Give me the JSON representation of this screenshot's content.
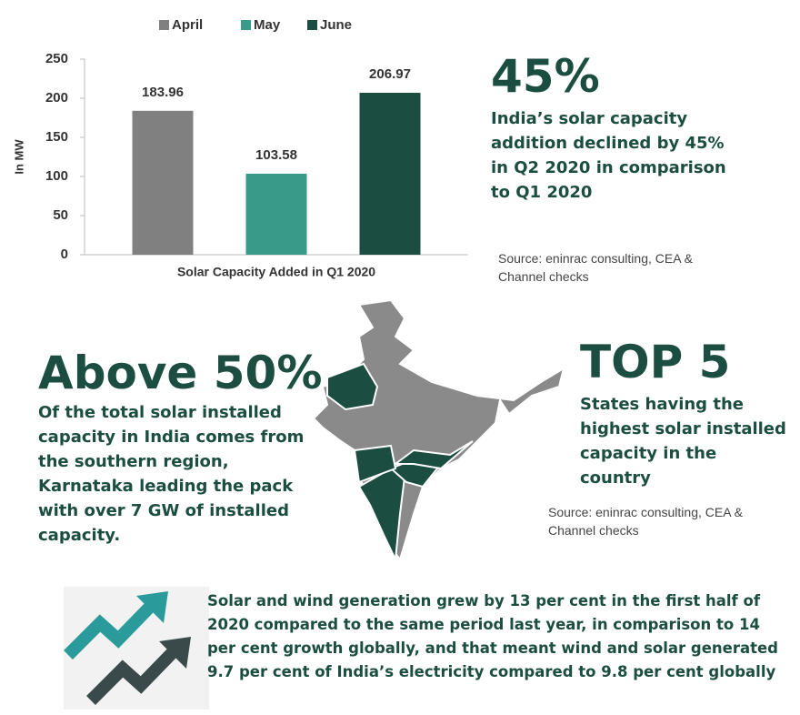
{
  "chart_data": {
    "type": "bar",
    "y_label": "In MW",
    "categories": [
      "Solar Capacity Added in Q1 2020"
    ],
    "series": [
      {
        "name": "April",
        "color": "#808080",
        "values": [
          183.96
        ]
      },
      {
        "name": "May",
        "color": "#3a9a8a",
        "values": [
          103.58
        ]
      },
      {
        "name": "June",
        "color": "#1b4d40",
        "values": [
          206.97
        ]
      }
    ],
    "ylim": [
      0,
      250
    ],
    "yticks": [
      0,
      50,
      100,
      150,
      200,
      250
    ],
    "legend": "top"
  },
  "stat_decline": {
    "headline": "45%",
    "text": "India’s solar capacity addition declined by 45% in Q2 2020 in comparison to Q1 2020",
    "source": "Source: eninrac consulting, CEA & Channel checks"
  },
  "stat_south": {
    "headline": "Above 50%",
    "text": "Of the total solar installed capacity in India comes from the southern region, Karnataka leading the pack with over 7 GW of installed capacity."
  },
  "stat_top": {
    "headline": "TOP 5",
    "text": "States having the highest solar installed capacity in the country",
    "source": "Source: eninrac consulting, CEA & Channel checks"
  },
  "growth": {
    "text": "Solar and wind generation grew by 13 per cent in the first half of 2020 compared to the same period last year, in comparison to 14 per cent growth globally, and that meant wind and solar generated 9.7 per cent of India’s electricity compared to 9.8 per cent globally"
  }
}
